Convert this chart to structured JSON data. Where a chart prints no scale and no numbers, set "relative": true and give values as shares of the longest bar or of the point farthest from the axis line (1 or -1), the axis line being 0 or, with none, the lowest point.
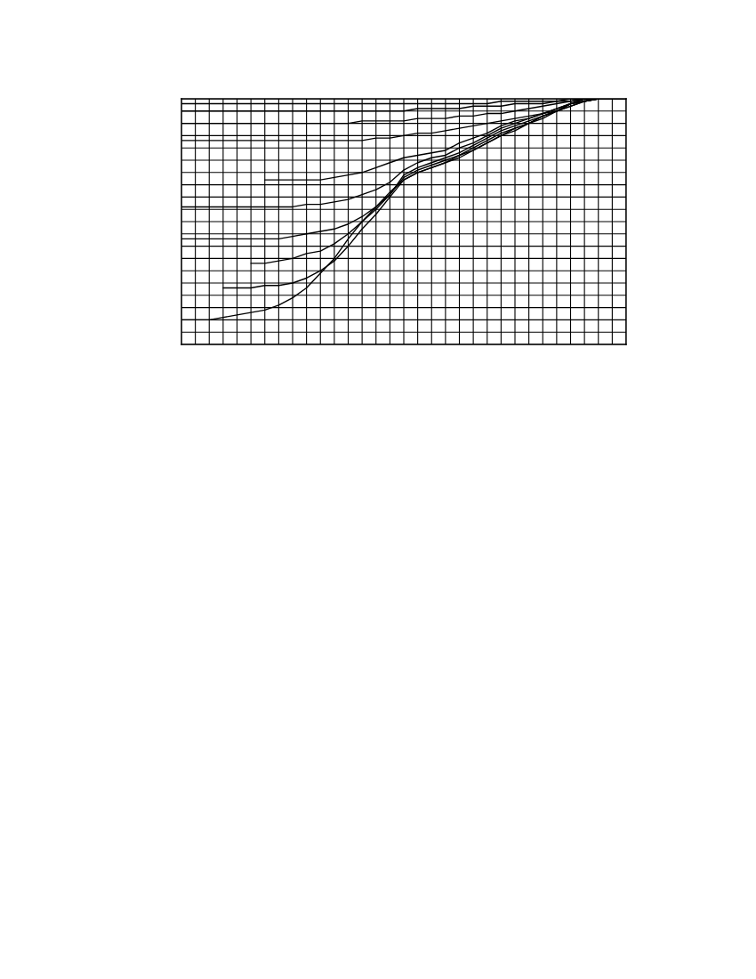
{
  "chart_data": {
    "type": "line",
    "relative": true,
    "grid": true,
    "tick_labels": false,
    "categories": [
      null,
      null,
      null,
      null,
      null,
      null,
      null,
      null,
      null,
      null,
      null,
      null,
      null,
      null,
      null,
      null,
      null,
      null,
      null,
      null,
      null,
      null,
      null,
      null,
      null,
      null,
      null,
      null,
      null,
      null,
      null,
      null,
      null
    ],
    "series": [
      {
        "color": "#000000",
        "values": [
          0.98,
          0.98,
          0.98,
          0.98,
          0.98,
          0.98,
          0.98,
          0.98,
          0.98,
          0.98,
          0.98,
          0.98,
          0.98,
          0.98,
          0.98,
          0.98,
          0.98,
          0.98,
          0.98,
          0.98,
          0.98,
          0.98,
          0.98,
          0.99,
          0.99,
          0.99,
          0.99,
          0.99,
          0.99,
          1,
          1,
          1,
          1
        ]
      },
      {
        "color": "#000000",
        "values": [
          0.95,
          0.95,
          0.95,
          0.95,
          0.95,
          0.95,
          0.95,
          0.95,
          0.95,
          0.95,
          0.95,
          0.95,
          0.95,
          0.95,
          0.95,
          0.95,
          0.95,
          0.96,
          0.96,
          0.96,
          0.96,
          0.97,
          0.97,
          0.97,
          0.98,
          0.98,
          0.98,
          0.99,
          1,
          1,
          1,
          1,
          1
        ]
      },
      {
        "color": "#000000",
        "values": [
          0.9,
          0.9,
          0.9,
          0.9,
          0.9,
          0.9,
          0.9,
          0.9,
          0.9,
          0.9,
          0.9,
          0.9,
          0.9,
          0.91,
          0.91,
          0.91,
          0.91,
          0.92,
          0.92,
          0.92,
          0.93,
          0.93,
          0.94,
          0.94,
          0.95,
          0.96,
          0.97,
          0.98,
          0.99,
          1,
          1,
          1,
          1
        ]
      },
      {
        "color": "#000000",
        "values": [
          0.83,
          0.83,
          0.83,
          0.83,
          0.83,
          0.83,
          0.83,
          0.83,
          0.83,
          0.83,
          0.83,
          0.83,
          0.83,
          0.83,
          0.84,
          0.84,
          0.85,
          0.86,
          0.86,
          0.87,
          0.88,
          0.89,
          0.9,
          0.91,
          0.92,
          0.93,
          0.94,
          0.95,
          0.97,
          0.99,
          1,
          1,
          1
        ]
      },
      {
        "color": "#000000",
        "values": [
          null,
          null,
          null,
          null,
          null,
          null,
          0.67,
          0.67,
          0.67,
          0.67,
          0.67,
          0.68,
          0.69,
          0.7,
          0.72,
          0.74,
          0.76,
          0.77,
          0.78,
          0.79,
          0.82,
          0.84,
          0.86,
          0.89,
          0.91,
          0.92,
          0.94,
          0.96,
          0.98,
          1,
          1,
          1,
          1
        ]
      },
      {
        "color": "#000000",
        "values": [
          0.56,
          0.56,
          0.56,
          0.56,
          0.56,
          0.56,
          0.56,
          0.56,
          0.56,
          0.57,
          0.57,
          0.58,
          0.59,
          0.61,
          0.63,
          0.66,
          0.71,
          0.74,
          0.76,
          0.77,
          0.8,
          0.82,
          0.85,
          0.88,
          0.9,
          0.92,
          0.94,
          0.96,
          0.98,
          1,
          1,
          1,
          1
        ]
      },
      {
        "color": "#000000",
        "values": [
          0.43,
          0.43,
          0.43,
          0.43,
          0.43,
          0.43,
          0.43,
          0.43,
          0.44,
          0.45,
          0.46,
          0.47,
          0.49,
          0.52,
          0.56,
          0.61,
          0.69,
          0.72,
          0.74,
          0.76,
          0.78,
          0.81,
          0.84,
          0.87,
          0.89,
          0.91,
          0.93,
          0.95,
          0.98,
          0.99,
          1,
          1,
          1
        ]
      },
      {
        "color": "#000000",
        "values": [
          null,
          null,
          null,
          null,
          null,
          0.33,
          0.33,
          0.34,
          0.35,
          0.37,
          0.38,
          0.41,
          0.45,
          0.5,
          0.55,
          0.61,
          0.68,
          0.71,
          0.73,
          0.75,
          0.77,
          0.8,
          0.83,
          0.86,
          0.88,
          0.9,
          0.93,
          0.95,
          0.98,
          0.99,
          1,
          1,
          1
        ]
      },
      {
        "color": "#000000",
        "values": [
          null,
          null,
          null,
          0.23,
          0.23,
          0.23,
          0.24,
          0.24,
          0.25,
          0.27,
          0.3,
          0.34,
          0.4,
          0.47,
          0.53,
          0.6,
          0.67,
          0.7,
          0.72,
          0.74,
          0.77,
          0.79,
          0.82,
          0.85,
          0.88,
          0.9,
          0.93,
          0.95,
          0.98,
          0.99,
          1,
          1,
          1
        ]
      },
      {
        "color": "#000000",
        "values": [
          0.1,
          0.1,
          0.1,
          0.11,
          0.12,
          0.13,
          0.14,
          0.16,
          0.19,
          0.23,
          0.29,
          0.35,
          0.43,
          0.5,
          0.56,
          0.62,
          0.67,
          0.7,
          0.72,
          0.74,
          0.76,
          0.79,
          0.82,
          0.85,
          0.87,
          0.9,
          0.92,
          0.95,
          0.97,
          0.99,
          1,
          1,
          1
        ]
      }
    ]
  }
}
